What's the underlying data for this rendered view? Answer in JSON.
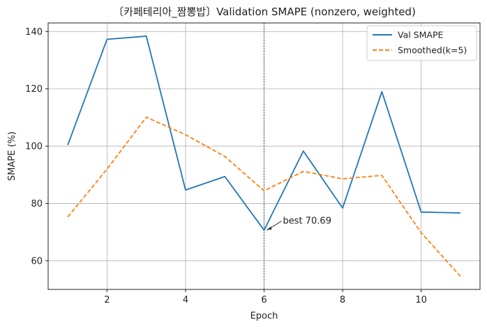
{
  "chart_data": {
    "type": "line",
    "title": "〔카페테리아_짬뽕밥〕Validation SMAPE (nonzero, weighted)",
    "xlabel": "Epoch",
    "ylabel": "SMAPE (%)",
    "xlim": [
      0.5,
      11.5
    ],
    "ylim": [
      50,
      143
    ],
    "xticks": [
      2,
      4,
      6,
      8,
      10
    ],
    "yticks": [
      60,
      80,
      100,
      120,
      140
    ],
    "grid": true,
    "legend_position": "top-right",
    "x": [
      1,
      2,
      3,
      4,
      5,
      6,
      7,
      8,
      9,
      10,
      11
    ],
    "series": [
      {
        "name": "Val SMAPE",
        "color": "#1f77b4",
        "style": "solid",
        "values": [
          100.4,
          137.3,
          138.4,
          84.7,
          89.4,
          70.69,
          98.3,
          78.4,
          119.0,
          77.0,
          76.7
        ]
      },
      {
        "name": "Smoothed(k=5)",
        "color": "#ff7f0e",
        "style": "dashed",
        "values": [
          75.3,
          92.0,
          110.1,
          104.0,
          96.4,
          84.4,
          91.2,
          88.6,
          89.8,
          69.8,
          54.6
        ]
      }
    ],
    "vline": {
      "x": 6,
      "color": "#808080",
      "style": "dotted"
    },
    "annotation": {
      "text": "best 70.69",
      "x": 6,
      "y": 70.69
    }
  }
}
